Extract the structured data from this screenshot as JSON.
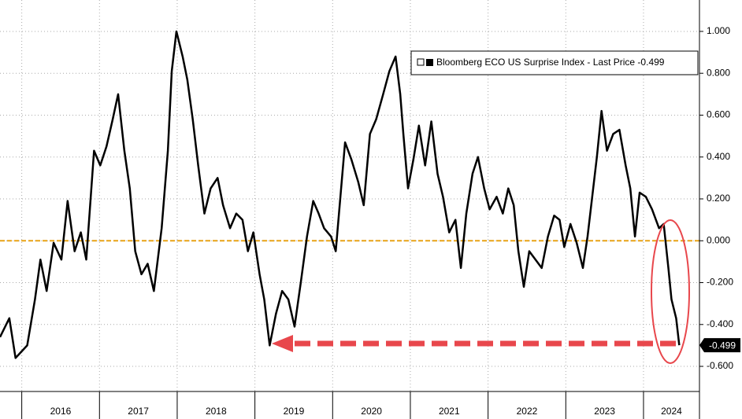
{
  "chart_data": {
    "type": "line",
    "x": [
      2015.72,
      2015.84,
      2015.92,
      2016.07,
      2016.17,
      2016.24,
      2016.32,
      2016.41,
      2016.51,
      2016.59,
      2016.68,
      2016.76,
      2016.83,
      2016.93,
      2017.01,
      2017.09,
      2017.17,
      2017.24,
      2017.32,
      2017.39,
      2017.46,
      2017.54,
      2017.62,
      2017.7,
      2017.8,
      2017.88,
      2017.93,
      2017.99,
      2018.07,
      2018.13,
      2018.2,
      2018.27,
      2018.35,
      2018.43,
      2018.52,
      2018.59,
      2018.68,
      2018.76,
      2018.84,
      2018.91,
      2018.98,
      2019.06,
      2019.12,
      2019.19,
      2019.27,
      2019.35,
      2019.43,
      2019.51,
      2019.59,
      2019.67,
      2019.75,
      2019.82,
      2019.89,
      2019.98,
      2020.04,
      2020.1,
      2020.16,
      2020.24,
      2020.33,
      2020.4,
      2020.48,
      2020.56,
      2020.65,
      2020.73,
      2020.81,
      2020.87,
      2020.91,
      2020.97,
      2021.04,
      2021.11,
      2021.19,
      2021.27,
      2021.35,
      2021.42,
      2021.5,
      2021.58,
      2021.65,
      2021.72,
      2021.8,
      2021.87,
      2021.95,
      2022.02,
      2022.11,
      2022.19,
      2022.26,
      2022.33,
      2022.39,
      2022.46,
      2022.53,
      2022.61,
      2022.69,
      2022.77,
      2022.85,
      2022.92,
      2022.98,
      2023.06,
      2023.14,
      2023.22,
      2023.28,
      2023.34,
      2023.4,
      2023.46,
      2023.53,
      2023.61,
      2023.69,
      2023.77,
      2023.83,
      2023.89,
      2023.95,
      2024.03,
      2024.11,
      2024.2,
      2024.26,
      2024.32,
      2024.36,
      2024.42,
      2024.46
    ],
    "series": [
      {
        "name": "Bloomberg ECO US Surprise Index - Last Price -0.499",
        "color": "#000000",
        "values": [
          -0.46,
          -0.37,
          -0.56,
          -0.5,
          -0.28,
          -0.09,
          -0.24,
          -0.01,
          -0.09,
          0.19,
          -0.05,
          0.04,
          -0.09,
          0.43,
          0.36,
          0.45,
          0.58,
          0.7,
          0.43,
          0.25,
          -0.05,
          -0.16,
          -0.11,
          -0.24,
          0.06,
          0.43,
          0.81,
          1.0,
          0.88,
          0.77,
          0.58,
          0.36,
          0.13,
          0.25,
          0.3,
          0.17,
          0.06,
          0.13,
          0.1,
          -0.05,
          0.04,
          -0.16,
          -0.28,
          -0.5,
          -0.35,
          -0.24,
          -0.28,
          -0.41,
          -0.2,
          0.02,
          0.19,
          0.13,
          0.06,
          0.02,
          -0.05,
          0.21,
          0.47,
          0.39,
          0.28,
          0.17,
          0.51,
          0.58,
          0.7,
          0.81,
          0.88,
          0.7,
          0.51,
          0.25,
          0.39,
          0.55,
          0.36,
          0.57,
          0.32,
          0.21,
          0.04,
          0.1,
          -0.13,
          0.13,
          0.32,
          0.4,
          0.25,
          0.15,
          0.21,
          0.13,
          0.25,
          0.17,
          -0.05,
          -0.22,
          -0.05,
          -0.09,
          -0.13,
          0.02,
          0.12,
          0.1,
          -0.03,
          0.08,
          -0.01,
          -0.13,
          0.02,
          0.21,
          0.4,
          0.62,
          0.43,
          0.51,
          0.53,
          0.36,
          0.25,
          0.02,
          0.23,
          0.21,
          0.15,
          0.06,
          0.08,
          -0.13,
          -0.28,
          -0.37,
          -0.499
        ]
      }
    ],
    "last_value": -0.499,
    "reference_line": {
      "value": 0,
      "color": "#e8a317"
    },
    "xlim": [
      2015.72,
      2024.72
    ],
    "xticks": [
      {
        "value": 2016,
        "label": "2016"
      },
      {
        "value": 2017,
        "label": "2017"
      },
      {
        "value": 2018,
        "label": "2018"
      },
      {
        "value": 2019,
        "label": "2019"
      },
      {
        "value": 2020,
        "label": "2020"
      },
      {
        "value": 2021,
        "label": "2021"
      },
      {
        "value": 2022,
        "label": "2022"
      },
      {
        "value": 2023,
        "label": "2023"
      },
      {
        "value": 2024,
        "label": "2024"
      }
    ],
    "ylim": [
      -0.72,
      1.15
    ],
    "yticks": [
      {
        "value": -0.6,
        "label": "-0.600"
      },
      {
        "value": -0.4,
        "label": "-0.400"
      },
      {
        "value": -0.2,
        "label": "-0.200"
      },
      {
        "value": 0,
        "label": "0.000"
      },
      {
        "value": 0.2,
        "label": "0.200"
      },
      {
        "value": 0.4,
        "label": "0.400"
      },
      {
        "value": 0.6,
        "label": "0.600"
      },
      {
        "value": 0.8,
        "label": "0.800"
      },
      {
        "value": 1,
        "label": "1.000"
      }
    ],
    "grid": true
  }
}
